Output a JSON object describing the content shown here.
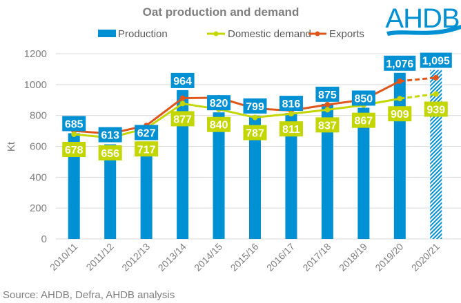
{
  "chart_data": {
    "type": "bar",
    "title": "Oat production and demand",
    "ylabel": "Kt",
    "xlabel": "",
    "ylim": [
      0,
      1200
    ],
    "yticks": [
      0,
      200,
      400,
      600,
      800,
      1000,
      1200
    ],
    "grid": true,
    "legend_placement": "top",
    "categories": [
      "2010/11",
      "2011/12",
      "2012/13",
      "2013/14",
      "2014/15",
      "2015/16",
      "2016/17",
      "2017/18",
      "2018/19",
      "2019/20",
      "2020/21"
    ],
    "series": [
      {
        "name": "Production",
        "kind": "bar",
        "color": "#0090D4",
        "values": [
          685,
          613,
          627,
          964,
          820,
          799,
          816,
          875,
          850,
          1076,
          1095
        ],
        "labels": [
          "685",
          "613",
          "627",
          "964",
          "820",
          "799",
          "816",
          "875",
          "850",
          "1,076",
          "1,095"
        ],
        "forecast_last": true
      },
      {
        "name": "Domestic demand",
        "kind": "line",
        "color": "#C4D600",
        "values": [
          678,
          656,
          717,
          877,
          840,
          787,
          811,
          837,
          867,
          909,
          939
        ],
        "labels": [
          "678",
          "656",
          "717",
          "877",
          "840",
          "787",
          "811",
          "837",
          "867",
          "909",
          "939"
        ],
        "forecast_last": true
      },
      {
        "name": "Exports",
        "kind": "line",
        "color": "#E0561A",
        "values": [
          700,
          682,
          735,
          912,
          915,
          845,
          832,
          870,
          902,
          1022,
          1045
        ],
        "forecast_last": true
      }
    ]
  },
  "source": "Source: AHDB, Defra, AHDB analysis",
  "logo": {
    "text": "AHDB",
    "color": "#0090D4"
  }
}
